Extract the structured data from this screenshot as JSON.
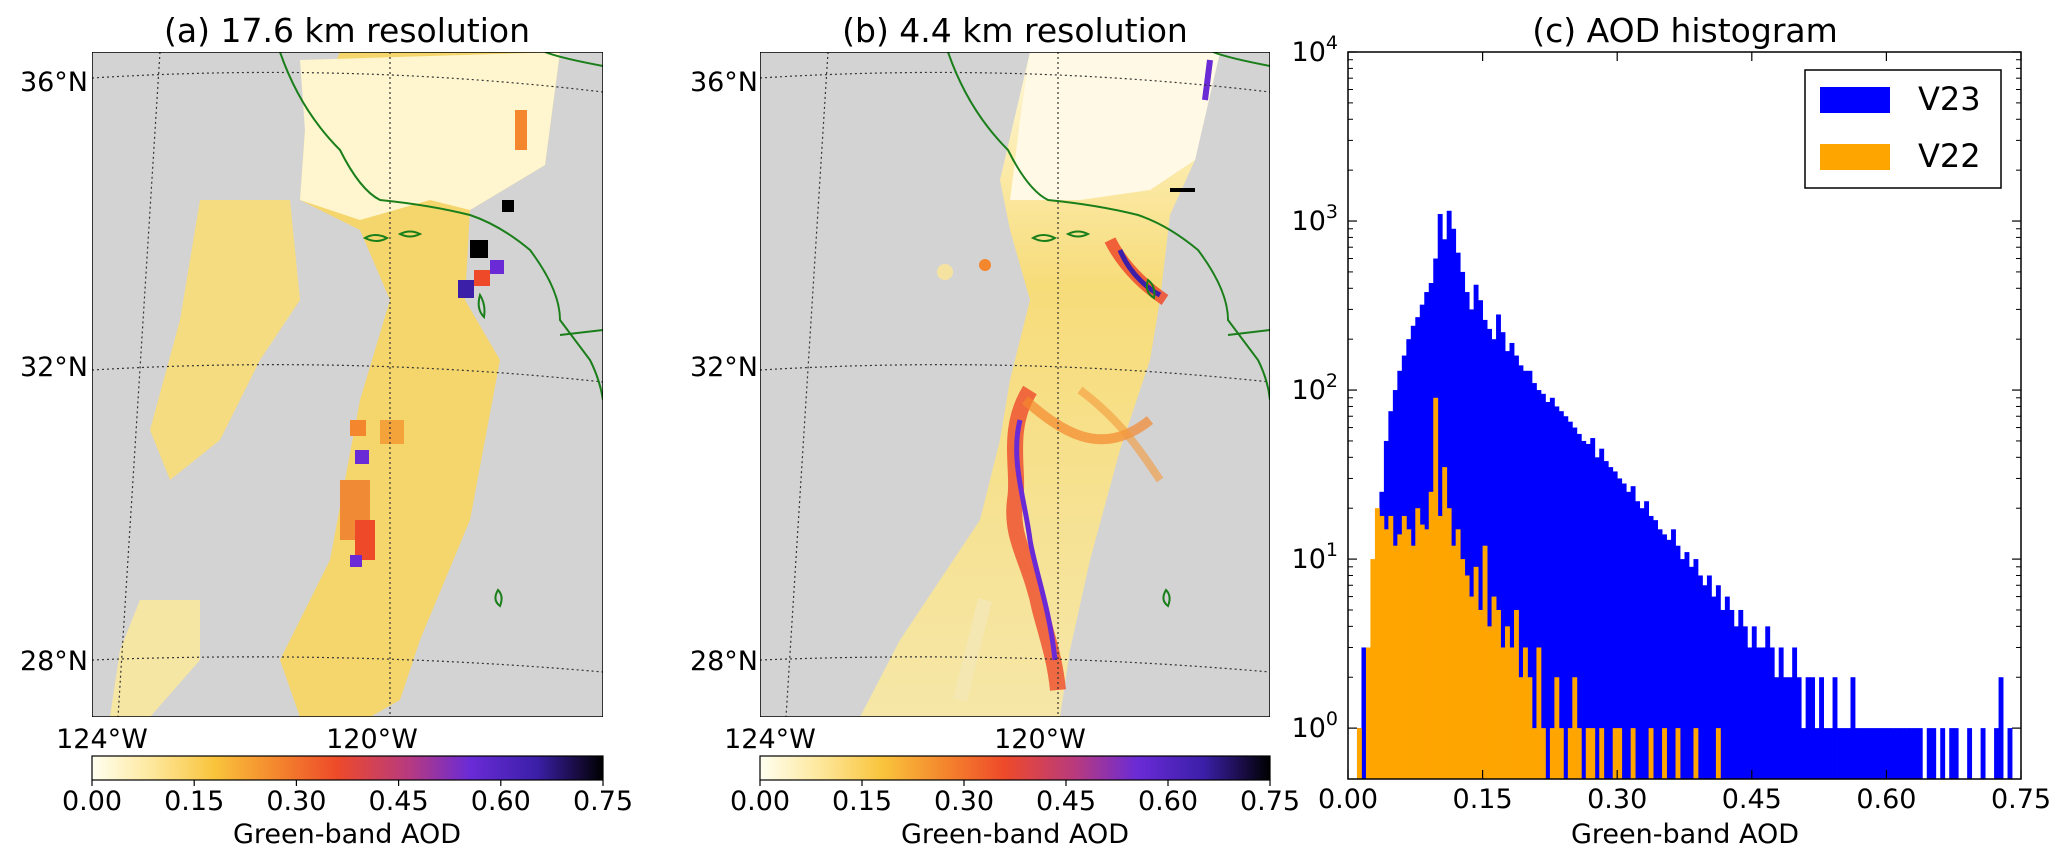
{
  "panels": {
    "a": {
      "title": "(a) 17.6 km resolution",
      "lat_labels": [
        "36°N",
        "32°N",
        "28°N"
      ],
      "lon_labels": [
        "124°W",
        "120°W"
      ],
      "colorbar_ticks": [
        "0.00",
        "0.15",
        "0.30",
        "0.45",
        "0.60",
        "0.75"
      ],
      "colorbar_label": "Green-band AOD"
    },
    "b": {
      "title": "(b) 4.4 km resolution",
      "lat_labels": [
        "36°N",
        "32°N",
        "28°N"
      ],
      "lon_labels": [
        "124°W",
        "120°W"
      ],
      "colorbar_ticks": [
        "0.00",
        "0.15",
        "0.30",
        "0.45",
        "0.60",
        "0.75"
      ],
      "colorbar_label": "Green-band AOD"
    }
  },
  "colors": {
    "v23": "#0000ff",
    "v22": "#ffa500",
    "map_background": "#d3d3d3",
    "coastline": "#1a7f1a",
    "colormap": [
      "#fffff0",
      "#fde79a",
      "#f9c43c",
      "#f4872d",
      "#ee4a2a",
      "#b73a7f",
      "#6a2bd6",
      "#3b1fa8",
      "#000000"
    ]
  },
  "chart_data": {
    "type": "histogram",
    "title": "(c) AOD histogram",
    "xlabel": "Green-band AOD",
    "ylabel": "",
    "xlim": [
      0,
      0.75
    ],
    "ylim": [
      0.5,
      10000
    ],
    "yscale": "log",
    "xticks": [
      "0.00",
      "0.15",
      "0.30",
      "0.45",
      "0.60",
      "0.75"
    ],
    "yticks": [
      {
        "base": "10",
        "exp": "0",
        "value": 1
      },
      {
        "base": "10",
        "exp": "1",
        "value": 10
      },
      {
        "base": "10",
        "exp": "2",
        "value": 100
      },
      {
        "base": "10",
        "exp": "3",
        "value": 1000
      },
      {
        "base": "10",
        "exp": "4",
        "value": 10000
      }
    ],
    "legend_position": "top-right",
    "bin_width": 0.005,
    "series": [
      {
        "name": "V23",
        "color": "#0000ff",
        "values": [
          0,
          0,
          1,
          3,
          2,
          1,
          10,
          25,
          50,
          75,
          100,
          130,
          160,
          200,
          240,
          270,
          320,
          380,
          430,
          600,
          1100,
          780,
          1150,
          900,
          650,
          500,
          380,
          300,
          420,
          340,
          260,
          230,
          200,
          280,
          220,
          170,
          190,
          160,
          140,
          130,
          130,
          110,
          100,
          95,
          85,
          90,
          80,
          75,
          70,
          65,
          60,
          55,
          50,
          48,
          52,
          40,
          45,
          38,
          35,
          33,
          30,
          28,
          25,
          27,
          22,
          20,
          22,
          18,
          17,
          15,
          14,
          13,
          15,
          12,
          10,
          11,
          9,
          10,
          8,
          7,
          8,
          6,
          7,
          5,
          6,
          5,
          4,
          5,
          4,
          3,
          4,
          3,
          3,
          4,
          3,
          2,
          3,
          2,
          2,
          3,
          2,
          1,
          2,
          2,
          1,
          2,
          1,
          1,
          2,
          1,
          1,
          1,
          2,
          1,
          1,
          1,
          1,
          1,
          1,
          1,
          1,
          1,
          1,
          1,
          1,
          1,
          1,
          1,
          0,
          1,
          1,
          0,
          1,
          0,
          1,
          1,
          0,
          0,
          1,
          0,
          0,
          1,
          0,
          0,
          1,
          2,
          0,
          1,
          0,
          0
        ]
      },
      {
        "name": "V22",
        "color": "#ffa500",
        "values": [
          0,
          0,
          1,
          0,
          3,
          10,
          20,
          18,
          15,
          18,
          12,
          14,
          18,
          15,
          12,
          20,
          16,
          15,
          25,
          90,
          18,
          35,
          20,
          12,
          15,
          10,
          8,
          6,
          9,
          5,
          12,
          4,
          6,
          5,
          3,
          4,
          3,
          5,
          2,
          3,
          2,
          1,
          3,
          1,
          0,
          1,
          2,
          1,
          0,
          1,
          2,
          1,
          0,
          1,
          1,
          0,
          1,
          0,
          0,
          1,
          1,
          0,
          0,
          1,
          0,
          0,
          0,
          1,
          0,
          0,
          1,
          0,
          0,
          1,
          0,
          0,
          0,
          1,
          0,
          0,
          0,
          0,
          1,
          0,
          0,
          0,
          0,
          0,
          0,
          0,
          0,
          0,
          0,
          0,
          0,
          0,
          0,
          0,
          0,
          0,
          0,
          0,
          0,
          0,
          0,
          0,
          0,
          0,
          0,
          0,
          0,
          0,
          0,
          0,
          0,
          0,
          0,
          0,
          0,
          0,
          0,
          0,
          0,
          0,
          0,
          0,
          0,
          0,
          0,
          0,
          0,
          0,
          0,
          0,
          0,
          0,
          0,
          0,
          0,
          0,
          0,
          0,
          0,
          0,
          0,
          0,
          0,
          0,
          0,
          0
        ]
      }
    ]
  }
}
